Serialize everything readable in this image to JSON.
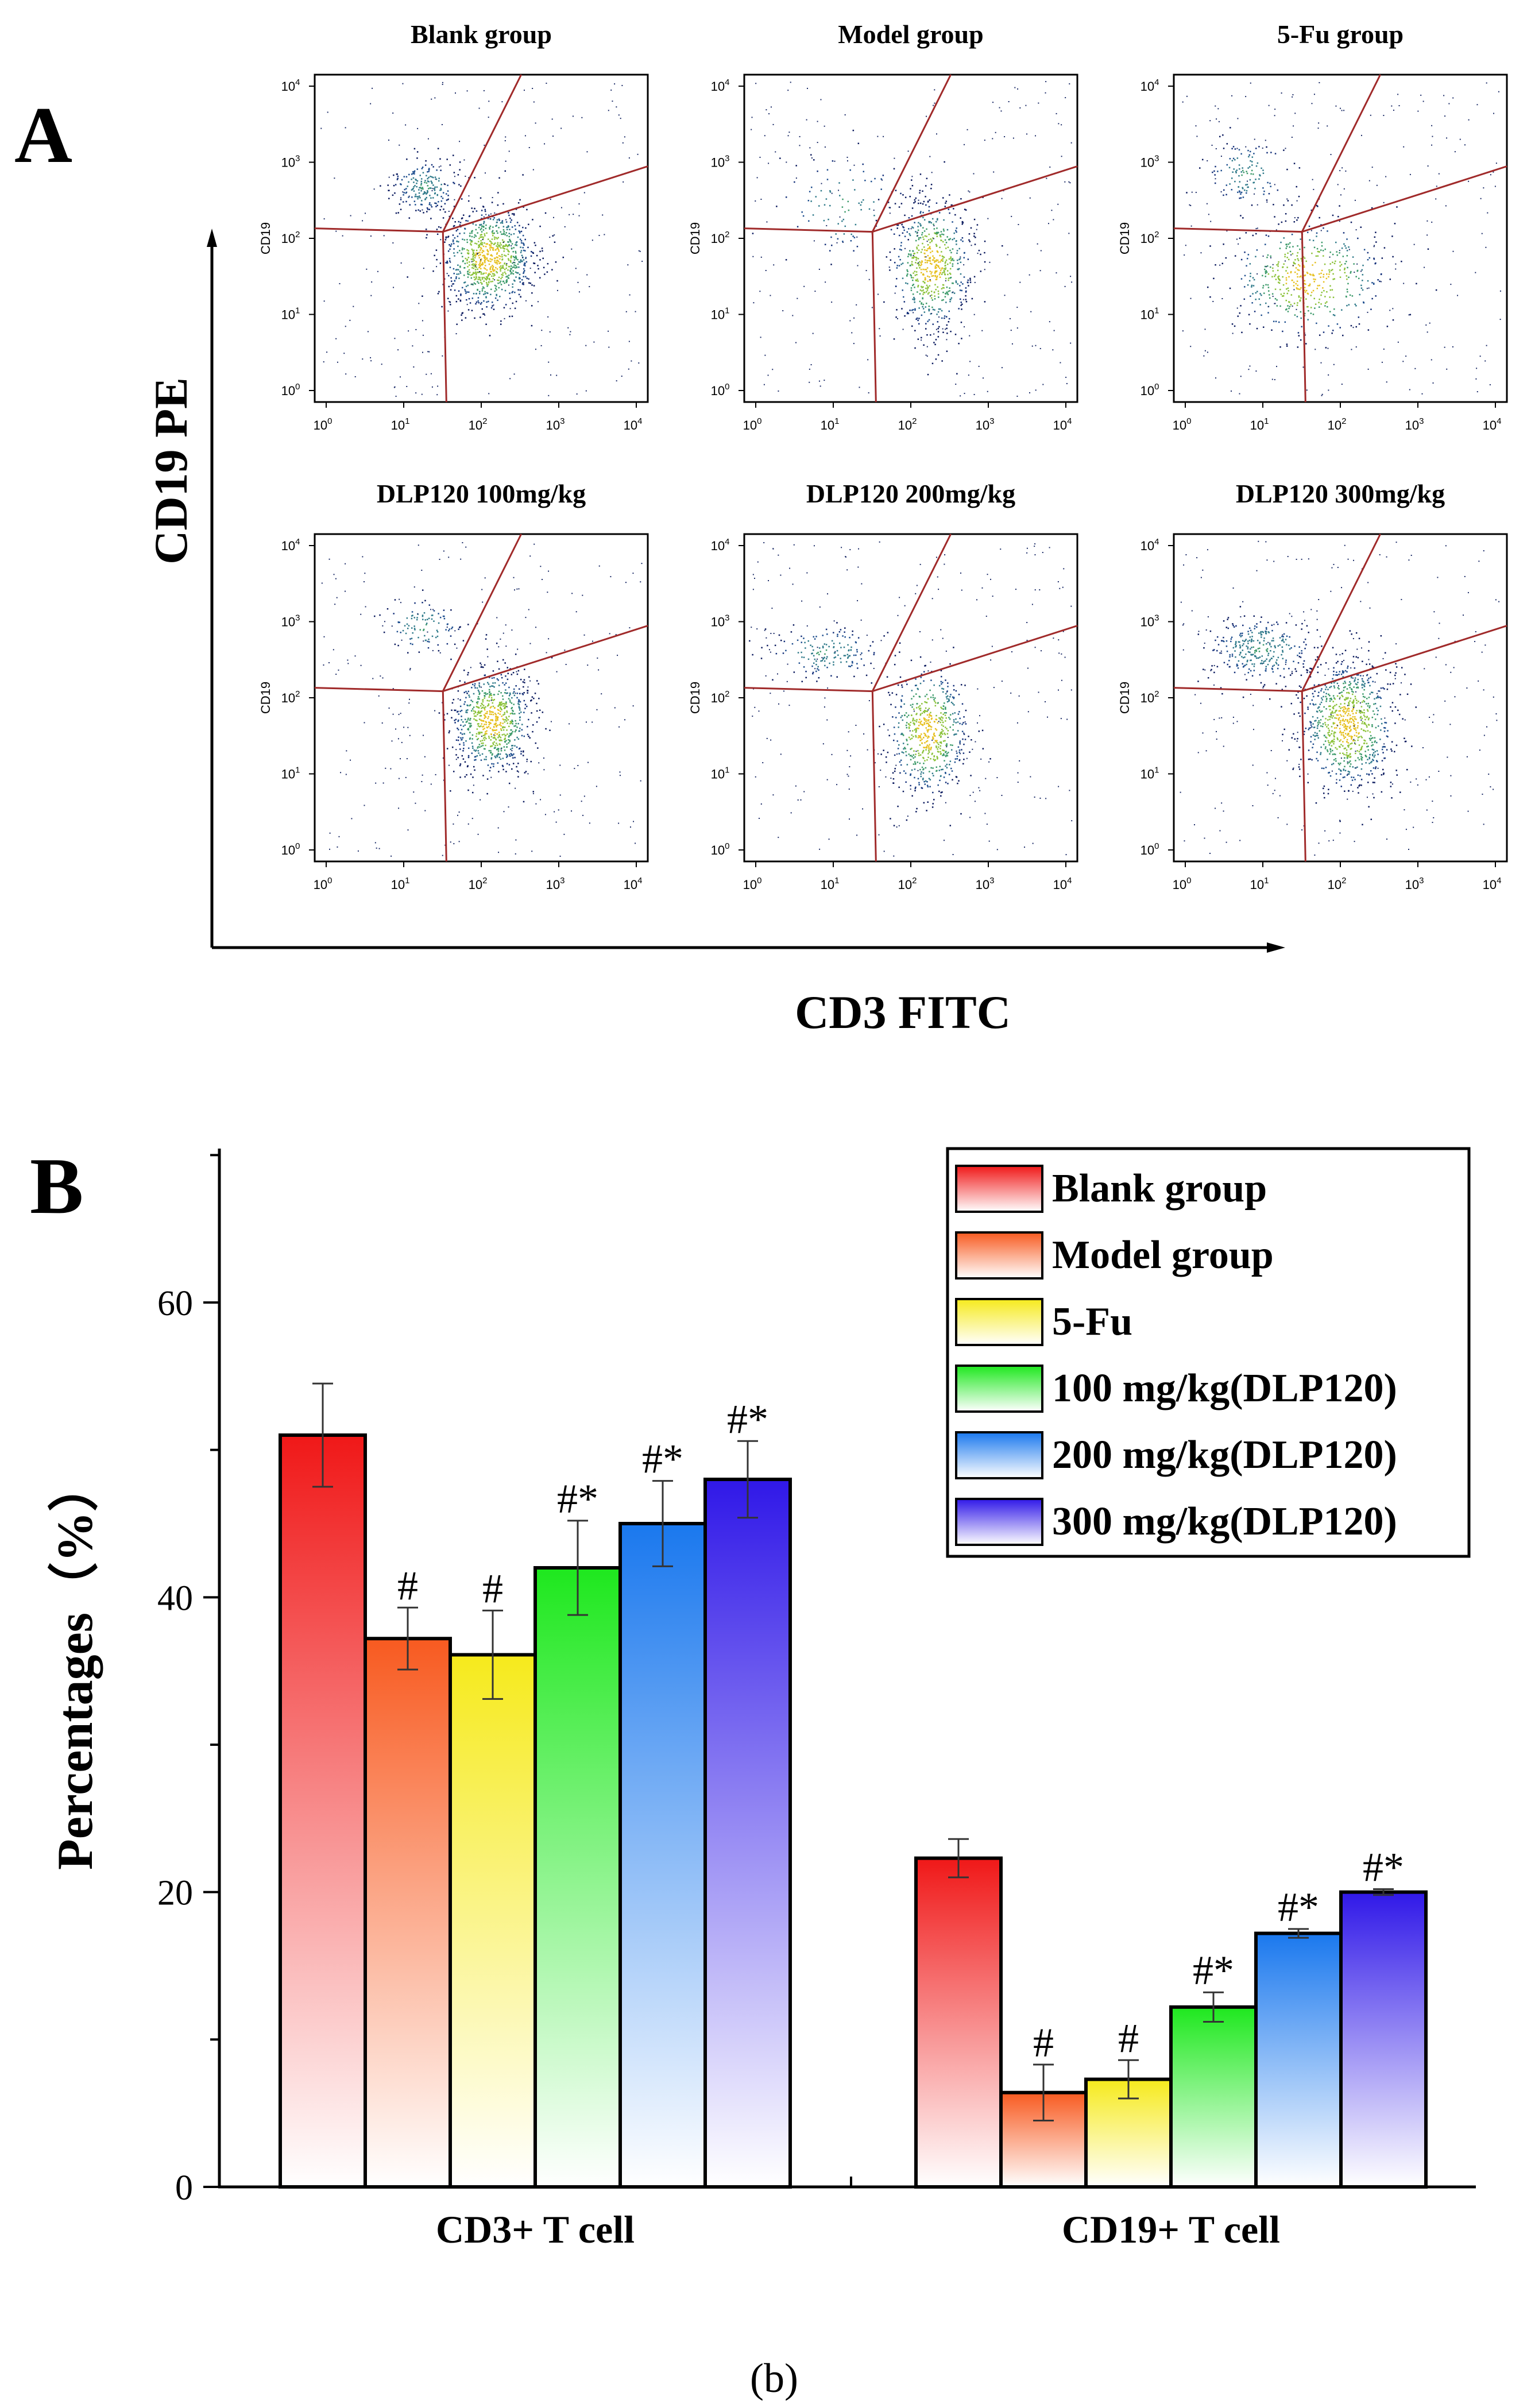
{
  "figure_label": "(b)",
  "panel_a": {
    "letter": "A",
    "y_axis_title": "CD19 PE",
    "x_axis_title": "CD3 FITC",
    "plot_y_label": "CD19",
    "tick_labels": {
      "x": [
        "10",
        "10",
        "10",
        "10",
        "10"
      ],
      "x_exp": [
        "0",
        "1",
        "2",
        "3",
        "4"
      ],
      "y": [
        "10",
        "10",
        "10",
        "10",
        "10"
      ],
      "y_exp": [
        "0",
        "1",
        "2",
        "3",
        "4"
      ]
    },
    "plots": [
      {
        "title": "Blank group"
      },
      {
        "title": "Model group"
      },
      {
        "title": "5-Fu group"
      },
      {
        "title": "DLP120 100mg/kg"
      },
      {
        "title": "DLP120 200mg/kg"
      },
      {
        "title": "DLP120 300mg/kg"
      }
    ]
  },
  "chart_data": {
    "type": "bar",
    "panel_letter": "B",
    "ylabel": "Percentages（%）",
    "ylim": [
      0,
      70
    ],
    "yticks": [
      "0",
      "20",
      "40",
      "60"
    ],
    "categories": [
      "CD3+ T cell",
      "CD19+ T cell"
    ],
    "series": [
      {
        "name": "Blank group",
        "values": [
          51,
          22.3
        ],
        "errors": [
          3.5,
          1.3
        ],
        "marks": [
          "",
          ""
        ],
        "color_top": "#f01818"
      },
      {
        "name": "Model group",
        "values": [
          37.2,
          6.4
        ],
        "errors": [
          2.1,
          1.9
        ],
        "marks": [
          "#",
          "#"
        ],
        "color_top": "#f85a20"
      },
      {
        "name": "5-Fu",
        "values": [
          36.1,
          7.3
        ],
        "errors": [
          3.0,
          1.3
        ],
        "marks": [
          "#",
          "#"
        ],
        "color_top": "#f6ea1c"
      },
      {
        "name": "100 mg/kg(DLP120)",
        "values": [
          42,
          12.2
        ],
        "errors": [
          3.2,
          1.0
        ],
        "marks": [
          "#*",
          "#*"
        ],
        "color_top": "#1ee81e"
      },
      {
        "name": "200 mg/kg(DLP120)",
        "values": [
          45,
          17.2
        ],
        "errors": [
          2.9,
          0.3
        ],
        "marks": [
          "#*",
          "#*"
        ],
        "color_top": "#1a78ee"
      },
      {
        "name": "300 mg/kg(DLP120)",
        "values": [
          48,
          20
        ],
        "errors": [
          2.6,
          0.2
        ],
        "marks": [
          "#*",
          "#*"
        ],
        "color_top": "#3018e8"
      }
    ],
    "legend_position": "top-right"
  }
}
